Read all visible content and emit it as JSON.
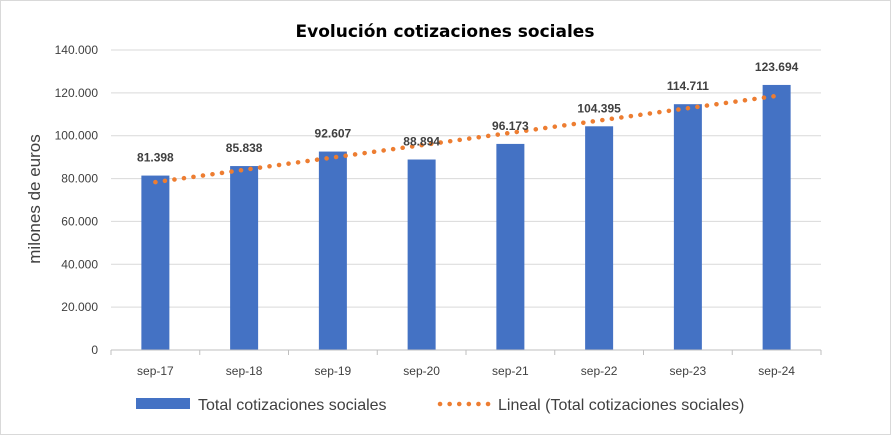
{
  "chart_data": {
    "type": "bar",
    "title": "Evolución cotizaciones sociales",
    "ylabel": "milones de euros",
    "xlabel": "",
    "categories": [
      "sep-17",
      "sep-18",
      "sep-19",
      "sep-20",
      "sep-21",
      "sep-22",
      "sep-23",
      "sep-24"
    ],
    "series": [
      {
        "name": "Total cotizaciones sociales",
        "values": [
          81398,
          85838,
          92607,
          88894,
          96173,
          104395,
          114711,
          123694
        ],
        "data_labels": [
          "81.398",
          "85.838",
          "92.607",
          "88.894",
          "96.173",
          "104.395",
          "114.711",
          "123.694"
        ],
        "color": "#4472C4"
      }
    ],
    "trendline": {
      "name": "Lineal (Total cotizaciones sociales)",
      "type": "linear",
      "style": "dotted",
      "color": "#ED7D31"
    },
    "ylim": [
      0,
      140000
    ],
    "yticks": [
      0,
      20000,
      40000,
      60000,
      80000,
      100000,
      120000,
      140000
    ],
    "ytick_labels": [
      "0",
      "20.000",
      "40.000",
      "60.000",
      "80.000",
      "100.000",
      "120.000",
      "140.000"
    ],
    "grid": true,
    "legend_position": "bottom"
  }
}
